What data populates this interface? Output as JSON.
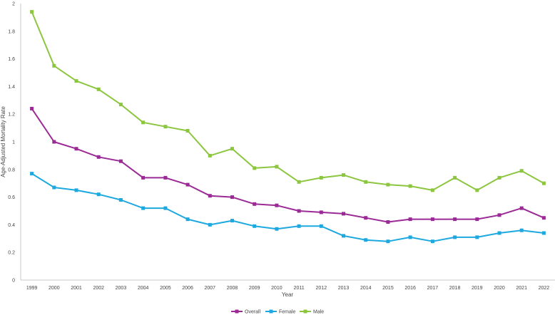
{
  "chart_data": {
    "type": "line",
    "title": "",
    "xlabel": "Year",
    "ylabel": "Age-Adjusted Mortality Rate",
    "ylim": [
      0,
      2
    ],
    "yticks": [
      "0",
      "0.2",
      "0.4",
      "0.6",
      "0.8",
      "1",
      "1.2",
      "1.4",
      "1.6",
      "1.8",
      "2"
    ],
    "grid": false,
    "legend_position": "bottom-center",
    "x": [
      "1999",
      "2000",
      "2001",
      "2002",
      "2003",
      "2004",
      "2005",
      "2006",
      "2007",
      "2008",
      "2009",
      "2010",
      "2011",
      "2012",
      "2013",
      "2014",
      "2015",
      "2016",
      "2017",
      "2018",
      "2019",
      "2020",
      "2021",
      "2022"
    ],
    "series": [
      {
        "name": "Overall",
        "color": "#9B2A96",
        "marker": "square",
        "values": [
          1.24,
          1.0,
          0.95,
          0.89,
          0.86,
          0.74,
          0.74,
          0.69,
          0.61,
          0.6,
          0.55,
          0.54,
          0.5,
          0.49,
          0.48,
          0.45,
          0.42,
          0.44,
          0.44,
          0.44,
          0.44,
          0.47,
          0.52,
          0.45
        ]
      },
      {
        "name": "Female",
        "color": "#1DA9E0",
        "marker": "square",
        "values": [
          0.77,
          0.67,
          0.65,
          0.62,
          0.58,
          0.52,
          0.52,
          0.44,
          0.4,
          0.43,
          0.39,
          0.37,
          0.39,
          0.39,
          0.32,
          0.29,
          0.28,
          0.31,
          0.28,
          0.31,
          0.31,
          0.34,
          0.36,
          0.34
        ]
      },
      {
        "name": "Male",
        "color": "#8CC63F",
        "marker": "square",
        "values": [
          1.94,
          1.55,
          1.44,
          1.38,
          1.27,
          1.14,
          1.11,
          1.08,
          0.9,
          0.95,
          0.81,
          0.82,
          0.71,
          0.74,
          0.76,
          0.71,
          0.69,
          0.68,
          0.65,
          0.74,
          0.65,
          0.74,
          0.79,
          0.7
        ]
      }
    ]
  }
}
